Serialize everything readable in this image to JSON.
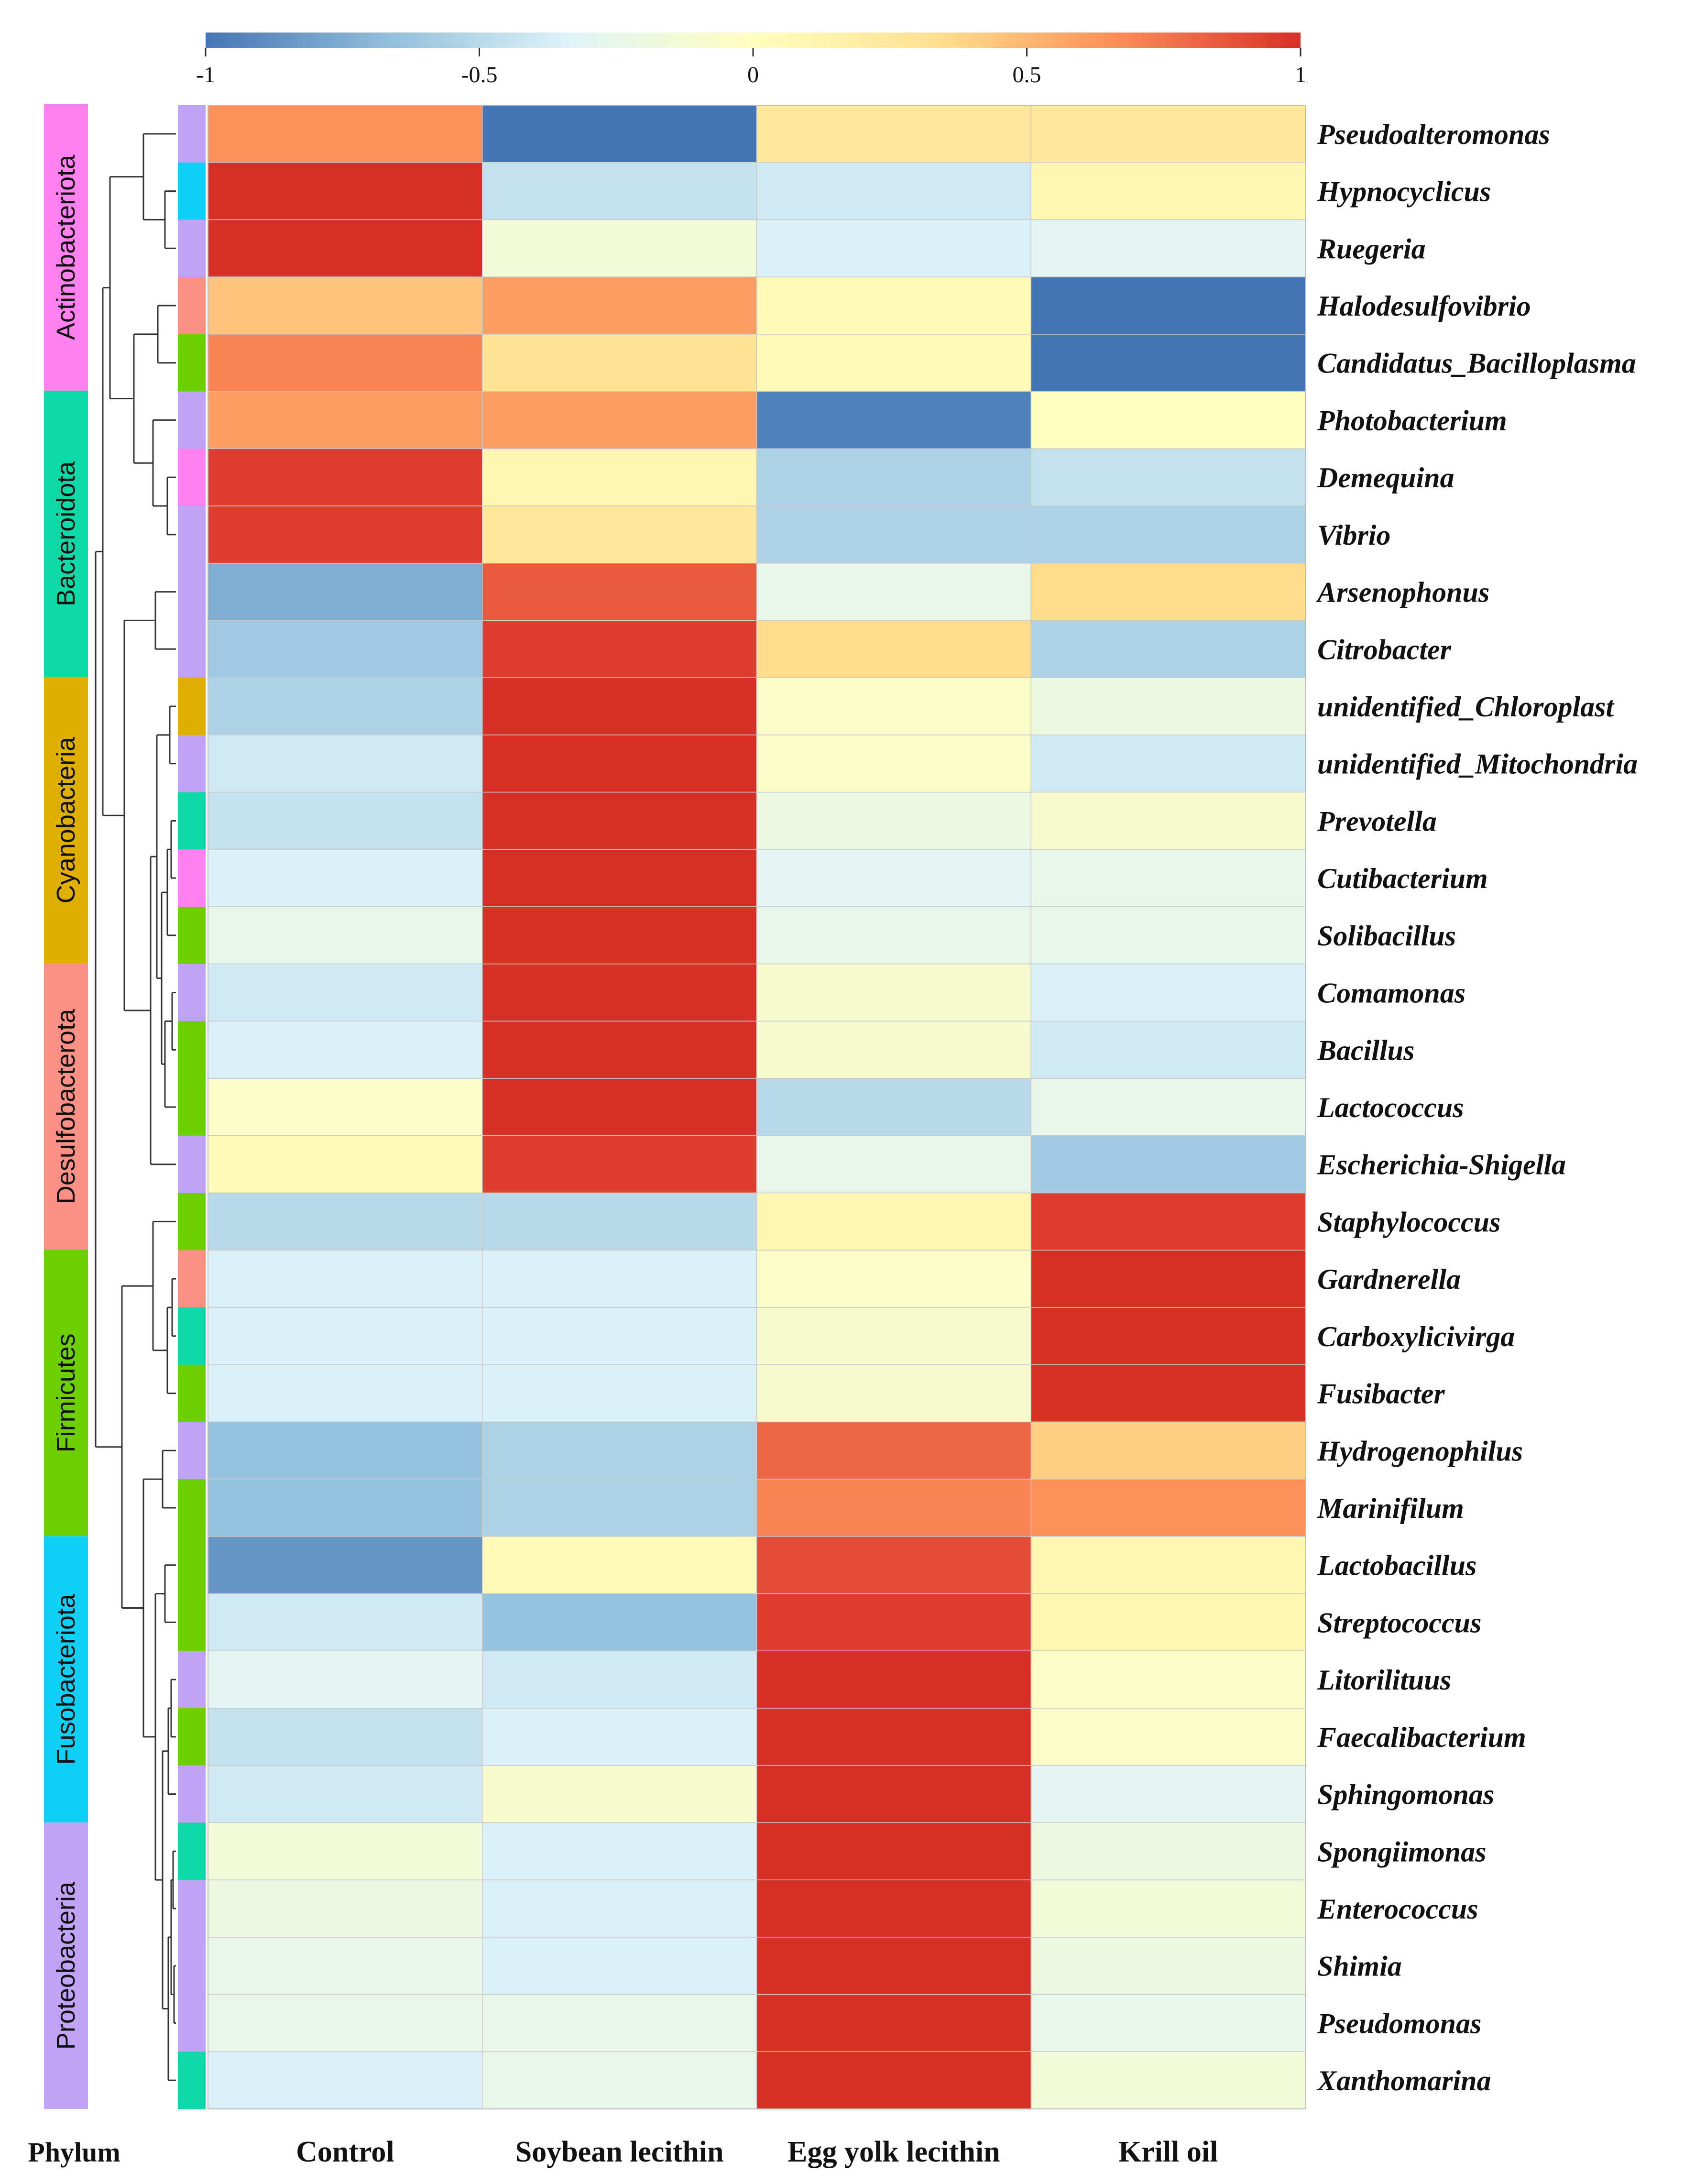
{
  "chart_data": {
    "type": "heatmap",
    "title": "",
    "colorbar": {
      "ticks": [
        "-1",
        "-0.5",
        "0",
        "0.5",
        "1"
      ],
      "range": [
        -1,
        1
      ],
      "stops": [
        "#4575b4",
        "#91bfdb",
        "#e0f3f8",
        "#ffffbf",
        "#fee090",
        "#fc8d59",
        "#d73027"
      ]
    },
    "columns": [
      "Control",
      "Soybean lecithin",
      "Egg yolk lecithin",
      "Krill oil"
    ],
    "phylum_axis_label": "Phylum",
    "phyla": [
      {
        "name": "Actinobacteriota",
        "color": "#ff80ee"
      },
      {
        "name": "Bacteroidota",
        "color": "#10d9a8"
      },
      {
        "name": "Cyanobacteria",
        "color": "#e0b000"
      },
      {
        "name": "Desulfobacterota",
        "color": "#fa8f86"
      },
      {
        "name": "Firmicutes",
        "color": "#6ed000"
      },
      {
        "name": "Fusobacteriota",
        "color": "#10d0f5"
      },
      {
        "name": "Proteobacteria",
        "color": "#c0a3f5"
      }
    ],
    "rows": [
      {
        "genus": "Pseudoalteromonas",
        "phylum": "Proteobacteria",
        "values": [
          0.65,
          -1.0,
          0.25,
          0.25
        ]
      },
      {
        "genus": "Hypnocyclicus",
        "phylum": "Fusobacteriota",
        "values": [
          1.0,
          -0.45,
          -0.4,
          0.1
        ]
      },
      {
        "genus": "Ruegeria",
        "phylum": "Proteobacteria",
        "values": [
          1.0,
          -0.15,
          -0.35,
          -0.3
        ]
      },
      {
        "genus": "Halodesulfovibrio",
        "phylum": "Desulfobacterota",
        "values": [
          0.45,
          0.6,
          0.05,
          -1.0
        ]
      },
      {
        "genus": "Candidatus_Bacilloplasma",
        "phylum": "Firmicutes",
        "values": [
          0.7,
          0.3,
          0.05,
          -1.0
        ]
      },
      {
        "genus": "Photobacterium",
        "phylum": "Proteobacteria",
        "values": [
          0.6,
          0.6,
          -0.95,
          0.0
        ]
      },
      {
        "genus": "Demequina",
        "phylum": "Actinobacteriota",
        "values": [
          0.95,
          0.1,
          -0.55,
          -0.45
        ]
      },
      {
        "genus": "Vibrio",
        "phylum": "Proteobacteria",
        "values": [
          0.95,
          0.25,
          -0.55,
          -0.55
        ]
      },
      {
        "genus": "Arsenophonus",
        "phylum": "Proteobacteria",
        "values": [
          -0.75,
          0.85,
          -0.25,
          0.35
        ]
      },
      {
        "genus": "Citrobacter",
        "phylum": "Proteobacteria",
        "values": [
          -0.6,
          0.95,
          0.35,
          -0.55
        ]
      },
      {
        "genus": "unidentified_Chloroplast",
        "phylum": "Cyanobacteria",
        "values": [
          -0.55,
          1.0,
          -0.05,
          -0.2
        ]
      },
      {
        "genus": "unidentified_Mitochondria",
        "phylum": "Proteobacteria",
        "values": [
          -0.4,
          1.0,
          -0.05,
          -0.4
        ]
      },
      {
        "genus": "Prevotella",
        "phylum": "Bacteroidota",
        "values": [
          -0.45,
          1.0,
          -0.2,
          -0.1
        ]
      },
      {
        "genus": "Cutibacterium",
        "phylum": "Actinobacteriota",
        "values": [
          -0.35,
          1.0,
          -0.3,
          -0.25
        ]
      },
      {
        "genus": "Solibacillus",
        "phylum": "Firmicutes",
        "values": [
          -0.25,
          1.0,
          -0.25,
          -0.25
        ]
      },
      {
        "genus": "Comamonas",
        "phylum": "Proteobacteria",
        "values": [
          -0.4,
          1.0,
          -0.1,
          -0.35
        ]
      },
      {
        "genus": "Bacillus",
        "phylum": "Firmicutes",
        "values": [
          -0.35,
          1.0,
          -0.1,
          -0.4
        ]
      },
      {
        "genus": "Lactococcus",
        "phylum": "Firmicutes",
        "values": [
          -0.05,
          1.0,
          -0.5,
          -0.25
        ]
      },
      {
        "genus": "Escherichia-Shigella",
        "phylum": "Proteobacteria",
        "values": [
          0.05,
          0.95,
          -0.25,
          -0.6
        ]
      },
      {
        "genus": "Staphylococcus",
        "phylum": "Firmicutes",
        "values": [
          -0.5,
          -0.5,
          0.1,
          0.95
        ]
      },
      {
        "genus": "Gardnerella",
        "phylum": "Desulfobacterota",
        "values": [
          -0.35,
          -0.35,
          -0.05,
          1.0
        ]
      },
      {
        "genus": "Carboxylicivirga",
        "phylum": "Bacteroidota",
        "values": [
          -0.35,
          -0.35,
          -0.1,
          1.0
        ]
      },
      {
        "genus": "Fusibacter",
        "phylum": "Firmicutes",
        "values": [
          -0.35,
          -0.35,
          -0.1,
          1.0
        ]
      },
      {
        "genus": "Hydrogenophilus",
        "phylum": "Proteobacteria",
        "values": [
          -0.65,
          -0.55,
          0.8,
          0.4
        ]
      },
      {
        "genus": "Marinifilum",
        "phylum": "Firmicutes",
        "values": [
          -0.65,
          -0.55,
          0.7,
          0.65
        ]
      },
      {
        "genus": "Lactobacillus",
        "phylum": "Firmicutes",
        "values": [
          -0.85,
          0.05,
          0.9,
          0.1
        ]
      },
      {
        "genus": "Streptococcus",
        "phylum": "Firmicutes",
        "values": [
          -0.4,
          -0.65,
          0.95,
          0.1
        ]
      },
      {
        "genus": "Litorilituus",
        "phylum": "Proteobacteria",
        "values": [
          -0.3,
          -0.4,
          1.0,
          -0.05
        ]
      },
      {
        "genus": "Faecalibacterium",
        "phylum": "Firmicutes",
        "values": [
          -0.45,
          -0.35,
          1.0,
          -0.05
        ]
      },
      {
        "genus": "Sphingomonas",
        "phylum": "Proteobacteria",
        "values": [
          -0.4,
          -0.1,
          1.0,
          -0.3
        ]
      },
      {
        "genus": "Spongiimonas",
        "phylum": "Bacteroidota",
        "values": [
          -0.15,
          -0.35,
          1.0,
          -0.2
        ]
      },
      {
        "genus": "Enterococcus",
        "phylum": "Proteobacteria",
        "values": [
          -0.2,
          -0.35,
          1.0,
          -0.15
        ]
      },
      {
        "genus": "Shimia",
        "phylum": "Proteobacteria",
        "values": [
          -0.25,
          -0.35,
          1.0,
          -0.2
        ]
      },
      {
        "genus": "Pseudomonas",
        "phylum": "Proteobacteria",
        "values": [
          -0.25,
          -0.25,
          1.0,
          -0.25
        ]
      },
      {
        "genus": "Xanthomarina",
        "phylum": "Bacteroidota",
        "values": [
          -0.35,
          -0.25,
          1.0,
          -0.15
        ]
      }
    ]
  }
}
